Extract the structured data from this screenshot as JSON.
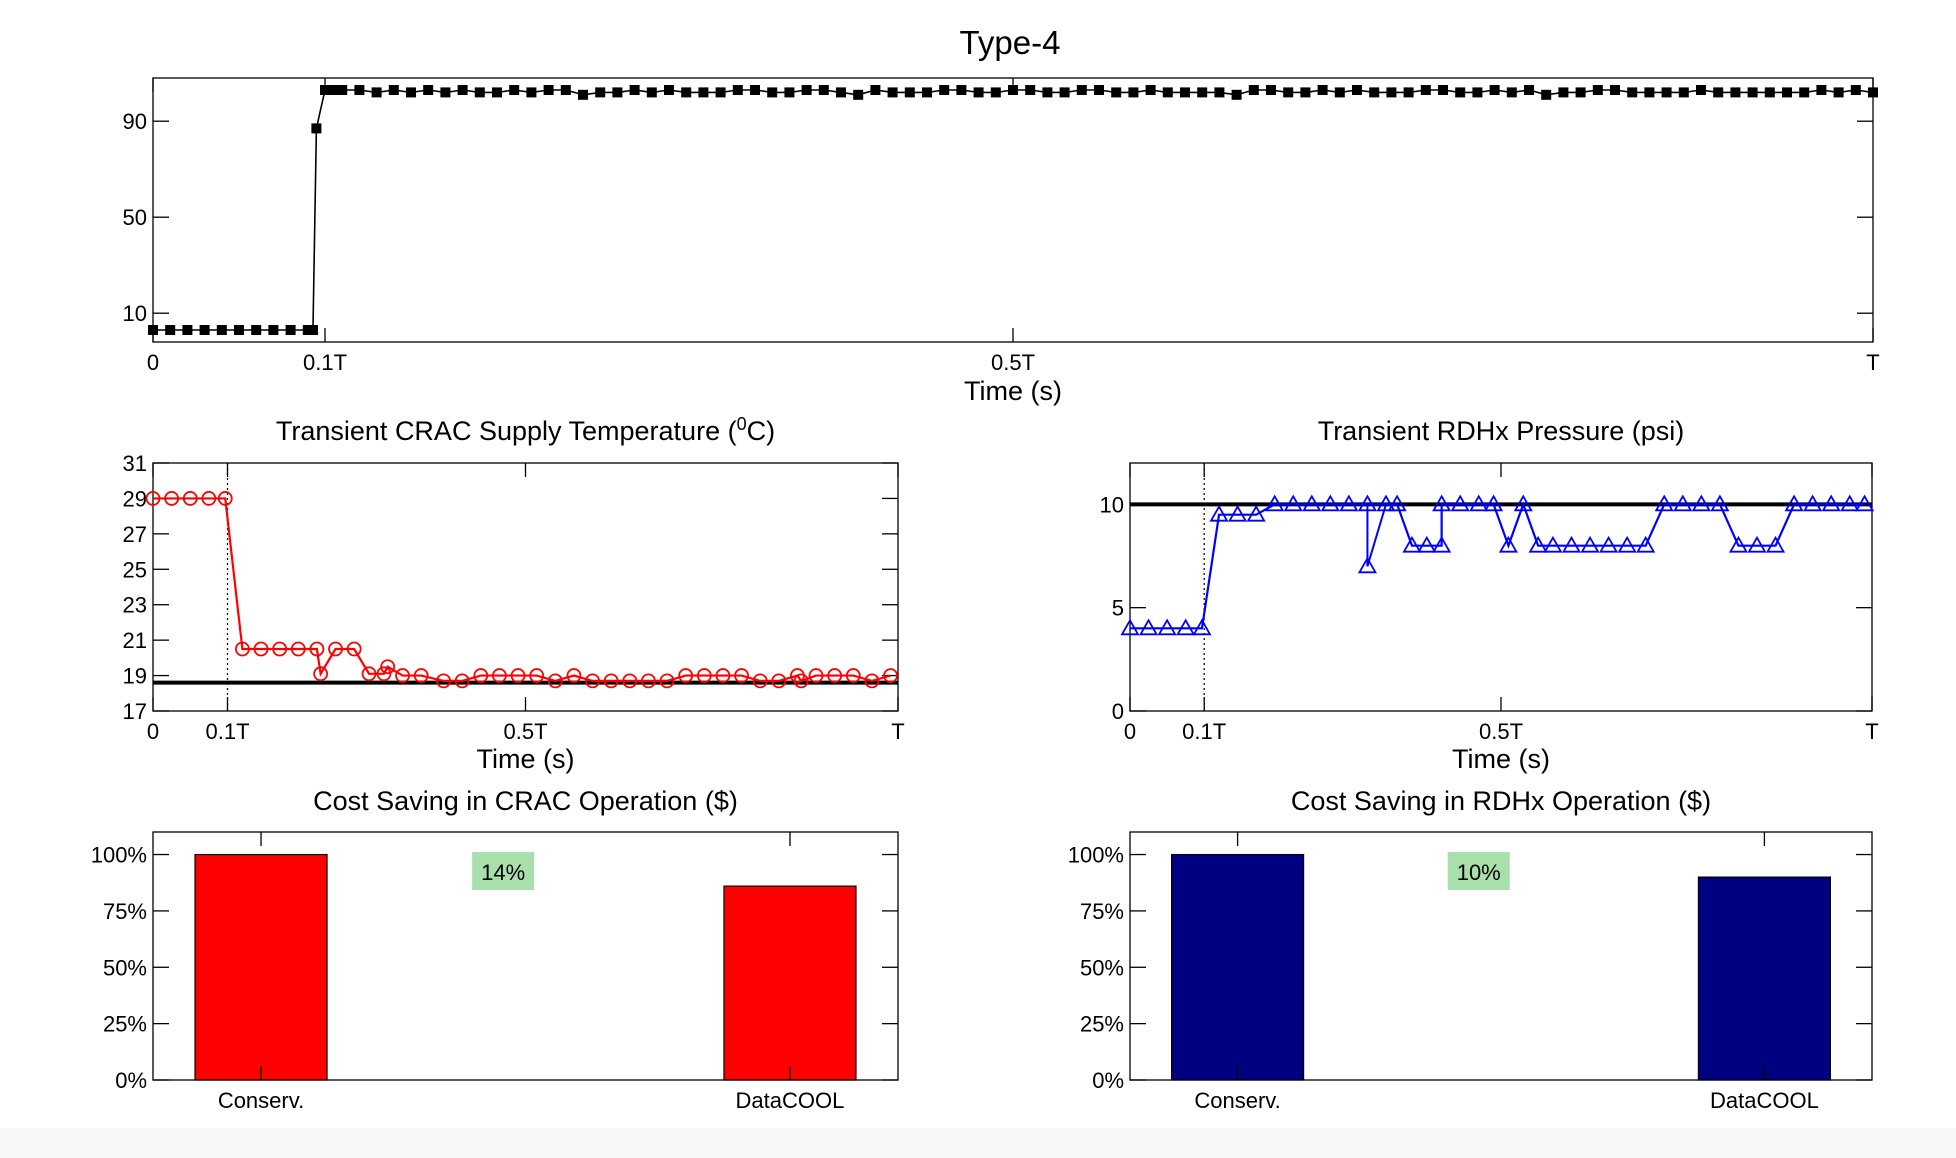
{
  "figure_title": "Type-4",
  "colors": {
    "crac": "#ff0000",
    "rdhx": "#0000ff",
    "crac_bar": "#ff0000",
    "rdhx_bar": "#000080",
    "reference": "#000000",
    "badge": "#a9dfab"
  },
  "chart_data": [
    {
      "id": "top",
      "type": "line",
      "title": "",
      "xlabel": "Time (s)",
      "ylabel": "",
      "xlim": [
        0,
        1
      ],
      "ylim": [
        -2,
        108
      ],
      "x_ticks": [
        0,
        0.1,
        0.5,
        1
      ],
      "x_tick_labels": [
        "0",
        "0.1T",
        "0.5T",
        "T"
      ],
      "y_ticks": [
        10,
        50,
        90
      ],
      "y_tick_labels": [
        "10",
        "50",
        "90"
      ],
      "marker": "square",
      "color": "#000000",
      "series": [
        {
          "x": [
            0,
            0.01,
            0.02,
            0.03,
            0.04,
            0.05,
            0.06,
            0.07,
            0.08,
            0.09,
            0.093,
            0.095,
            0.1,
            0.105,
            0.11,
            0.12,
            0.13,
            0.14,
            0.15,
            0.16,
            0.17,
            0.18,
            0.19,
            0.2,
            0.21,
            0.22,
            0.23,
            0.24,
            0.25,
            0.26,
            0.27,
            0.28,
            0.29,
            0.3,
            0.31,
            0.32,
            0.33,
            0.34,
            0.35,
            0.36,
            0.37,
            0.38,
            0.39,
            0.4,
            0.41,
            0.42,
            0.43,
            0.44,
            0.45,
            0.46,
            0.47,
            0.48,
            0.49,
            0.5,
            0.51,
            0.52,
            0.53,
            0.54,
            0.55,
            0.56,
            0.57,
            0.58,
            0.59,
            0.6,
            0.61,
            0.62,
            0.63,
            0.64,
            0.65,
            0.66,
            0.67,
            0.68,
            0.69,
            0.7,
            0.71,
            0.72,
            0.73,
            0.74,
            0.75,
            0.76,
            0.77,
            0.78,
            0.79,
            0.8,
            0.81,
            0.82,
            0.83,
            0.84,
            0.85,
            0.86,
            0.87,
            0.88,
            0.89,
            0.9,
            0.91,
            0.92,
            0.93,
            0.94,
            0.95,
            0.96,
            0.97,
            0.98,
            0.99,
            1
          ],
          "y": [
            3,
            3,
            3,
            3,
            3,
            3,
            3,
            3,
            3,
            3,
            3,
            87,
            103,
            103,
            103,
            103,
            102,
            103,
            102,
            103,
            102,
            103,
            102,
            102,
            103,
            102,
            103,
            103,
            101,
            102,
            102,
            103,
            102,
            103,
            102,
            102,
            102,
            103,
            103,
            102,
            102,
            103,
            103,
            102,
            101,
            103,
            102,
            102,
            102,
            103,
            103,
            102,
            102,
            103,
            103,
            102,
            102,
            103,
            103,
            102,
            102,
            103,
            102,
            102,
            102,
            102,
            101,
            103,
            103,
            102,
            102,
            103,
            102,
            103,
            102,
            102,
            102,
            103,
            103,
            102,
            102,
            103,
            102,
            103,
            101,
            102,
            102,
            103,
            103,
            102,
            102,
            102,
            102,
            103,
            102,
            102,
            102,
            102,
            102,
            102,
            103,
            102,
            103,
            102
          ]
        }
      ]
    },
    {
      "id": "crac",
      "type": "line",
      "title": "Transient CRAC Supply Temperature (",
      "title_sup": "0",
      "title_tail": "C)",
      "xlabel": "Time (s)",
      "ylabel": "",
      "xlim": [
        0,
        1
      ],
      "ylim": [
        17,
        31
      ],
      "x_ticks": [
        0,
        0.1,
        0.5,
        1
      ],
      "x_tick_labels": [
        "0",
        "0.1T",
        "0.5T",
        "T"
      ],
      "y_ticks": [
        17,
        19,
        21,
        23,
        25,
        27,
        29,
        31
      ],
      "y_tick_labels": [
        "17",
        "19",
        "21",
        "23",
        "25",
        "27",
        "29",
        "31"
      ],
      "reference": 18.6,
      "vline": 0.1,
      "marker": "circle",
      "color": "#ff0000",
      "series": [
        {
          "x": [
            0,
            0.025,
            0.05,
            0.075,
            0.097,
            0.12,
            0.145,
            0.17,
            0.195,
            0.22,
            0.225,
            0.245,
            0.27,
            0.29,
            0.31,
            0.315,
            0.335,
            0.36,
            0.39,
            0.415,
            0.44,
            0.465,
            0.49,
            0.515,
            0.54,
            0.565,
            0.59,
            0.615,
            0.64,
            0.665,
            0.69,
            0.715,
            0.74,
            0.765,
            0.79,
            0.815,
            0.84,
            0.865,
            0.87,
            0.89,
            0.915,
            0.94,
            0.965,
            0.99
          ],
          "y": [
            29,
            29,
            29,
            29,
            29,
            20.5,
            20.5,
            20.5,
            20.5,
            20.5,
            19.1,
            20.5,
            20.5,
            19.1,
            19.1,
            19.5,
            19,
            19,
            18.7,
            18.7,
            19,
            19,
            19,
            19,
            18.7,
            19,
            18.7,
            18.7,
            18.7,
            18.7,
            18.7,
            19,
            19,
            19,
            19,
            18.7,
            18.7,
            19,
            18.7,
            19,
            19,
            19,
            18.7,
            19
          ]
        }
      ]
    },
    {
      "id": "rdhx",
      "type": "line",
      "title": "Transient RDHx Pressure (psi)",
      "xlabel": "Time (s)",
      "ylabel": "",
      "xlim": [
        0,
        1
      ],
      "ylim": [
        0,
        12
      ],
      "x_ticks": [
        0,
        0.1,
        0.5,
        1
      ],
      "x_tick_labels": [
        "0",
        "0.1T",
        "0.5T",
        "T"
      ],
      "y_ticks": [
        0,
        5,
        10
      ],
      "y_tick_labels": [
        "0",
        "5",
        "10"
      ],
      "reference": 10,
      "vline": 0.1,
      "marker": "triangle",
      "color": "#0000ff",
      "series": [
        {
          "x": [
            0,
            0.025,
            0.05,
            0.075,
            0.097,
            0.12,
            0.145,
            0.17,
            0.195,
            0.22,
            0.245,
            0.27,
            0.295,
            0.32,
            0.345,
            0.36,
            0.38,
            0.4,
            0.42,
            0.42,
            0.445,
            0.47,
            0.49,
            0.51,
            0.53,
            0.55,
            0.57,
            0.595,
            0.62,
            0.645,
            0.67,
            0.695,
            0.72,
            0.745,
            0.77,
            0.795,
            0.82,
            0.845,
            0.87,
            0.895,
            0.92,
            0.945,
            0.97,
            0.99
          ],
          "y": [
            4,
            4,
            4,
            4,
            4,
            9.5,
            9.5,
            9.5,
            10,
            10,
            10,
            10,
            10,
            10,
            10,
            10,
            8,
            8,
            8,
            10,
            10,
            10,
            10,
            8,
            10,
            8,
            8,
            8,
            8,
            8,
            8,
            8,
            10,
            10,
            10,
            10,
            8,
            8,
            8,
            10,
            10,
            10,
            10,
            10
          ],
          "dips": [
            {
              "x": 0.32,
              "y": 7
            }
          ]
        }
      ]
    },
    {
      "id": "crac-cost",
      "type": "bar",
      "title": "Cost Saving in CRAC Operation ($)",
      "categories": [
        "Conserv.",
        "DataCOOL"
      ],
      "values": [
        100,
        86
      ],
      "ylim": [
        0,
        110
      ],
      "y_ticks": [
        0,
        25,
        50,
        75,
        100
      ],
      "y_tick_labels": [
        "0%",
        "25%",
        "50%",
        "75%",
        "100%"
      ],
      "annotation": "14%",
      "color": "#ff0000"
    },
    {
      "id": "rdhx-cost",
      "type": "bar",
      "title": "Cost Saving in RDHx Operation ($)",
      "categories": [
        "Conserv.",
        "DataCOOL"
      ],
      "values": [
        100,
        90
      ],
      "ylim": [
        0,
        110
      ],
      "y_ticks": [
        0,
        25,
        50,
        75,
        100
      ],
      "y_tick_labels": [
        "0%",
        "25%",
        "50%",
        "75%",
        "100%"
      ],
      "annotation": "10%",
      "color": "#000080"
    }
  ]
}
